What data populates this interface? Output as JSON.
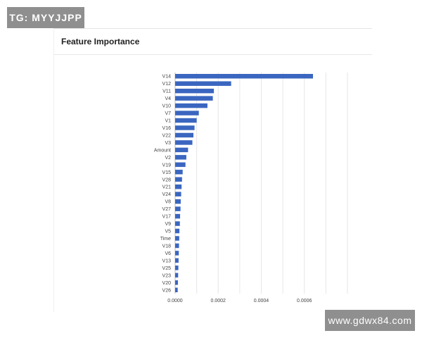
{
  "watermarks": {
    "top": "TG: MYYJJPP",
    "bottom": "www.gdwx84.com"
  },
  "panel": {
    "title": "Feature Importance"
  },
  "chart_data": {
    "type": "bar",
    "orientation": "horizontal",
    "title": "Feature Importance",
    "xlabel": "",
    "ylabel": "",
    "categories": [
      "V14",
      "V12",
      "V11",
      "V4",
      "V10",
      "V7",
      "V1",
      "V16",
      "V22",
      "V3",
      "Amount",
      "V2",
      "V19",
      "V15",
      "V28",
      "V21",
      "V24",
      "V8",
      "V27",
      "V17",
      "V9",
      "V5",
      "Time",
      "V18",
      "V6",
      "V13",
      "V25",
      "V23",
      "V20",
      "V26"
    ],
    "values": [
      0.00064,
      0.00026,
      0.00018,
      0.000175,
      0.00015,
      0.00011,
      0.0001,
      9e-05,
      8.5e-05,
      8e-05,
      6e-05,
      5.2e-05,
      4.8e-05,
      3.5e-05,
      3.2e-05,
      3e-05,
      2.8e-05,
      2.6e-05,
      2.5e-05,
      2.3e-05,
      2.2e-05,
      2e-05,
      1.9e-05,
      1.8e-05,
      1.7e-05,
      1.6e-05,
      1.5e-05,
      1.4e-05,
      1.3e-05,
      1.2e-05
    ],
    "xlim": [
      0,
      0.0008
    ],
    "xticks": [
      "0.0000",
      "0.0002",
      "0.0004",
      "0.0006"
    ],
    "color": "#3a66c0",
    "grid": true
  }
}
